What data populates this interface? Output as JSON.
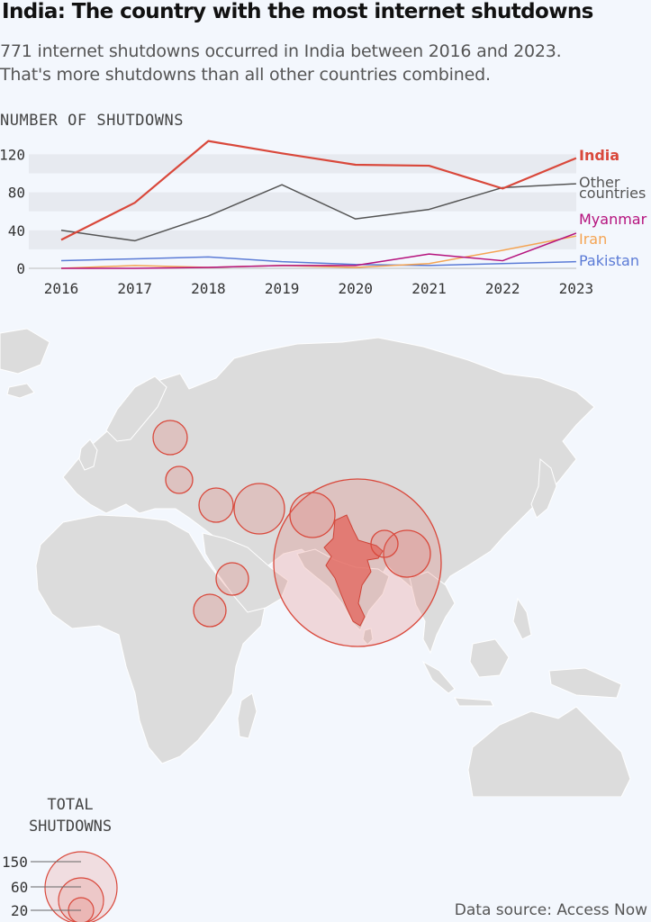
{
  "title": "India: The country with the most internet shutdowns",
  "subtitle": [
    "771 internet shutdowns occurred in India between 2016 and 2023.",
    "That's more shutdowns than all other countries combined."
  ],
  "source": "Data source: Access Now",
  "colors": {
    "India": "#d9483b",
    "Other countries": "#555555",
    "Myanmar": "#b5127d",
    "Iran": "#f4a453",
    "Pakistan": "#5b7bd6",
    "bubble_fill": "#e46a61",
    "bubble_stroke": "#d9483b",
    "land": "#dcdcdc",
    "border": "#ffffff"
  },
  "chart_data": [
    {
      "type": "line",
      "ylabel": "NUMBER OF SHUTDOWNS",
      "x": [
        "2016",
        "2017",
        "2018",
        "2019",
        "2020",
        "2021",
        "2022",
        "2023"
      ],
      "yticks": [
        "0",
        "40",
        "80",
        "120"
      ],
      "ylim": [
        0,
        140
      ],
      "grid": true,
      "legend_placement": "right-end-labels",
      "series": [
        {
          "name": "India",
          "values": [
            30,
            69,
            134,
            121,
            109,
            108,
            84,
            116
          ]
        },
        {
          "name": "Other countries",
          "values": [
            40,
            29,
            55,
            88,
            52,
            62,
            85,
            89
          ]
        },
        {
          "name": "Myanmar",
          "values": [
            0,
            0,
            1,
            3,
            3,
            15,
            8,
            37
          ]
        },
        {
          "name": "Iran",
          "values": [
            0,
            3,
            1,
            3,
            1,
            5,
            19,
            34
          ]
        },
        {
          "name": "Pakistan",
          "values": [
            8,
            10,
            12,
            7,
            4,
            3,
            5,
            7
          ]
        }
      ]
    },
    {
      "type": "bubble-map",
      "legend_title": [
        "TOTAL",
        "SHUTDOWNS"
      ],
      "legend_values": [
        "150",
        "60",
        "20"
      ]
    }
  ]
}
